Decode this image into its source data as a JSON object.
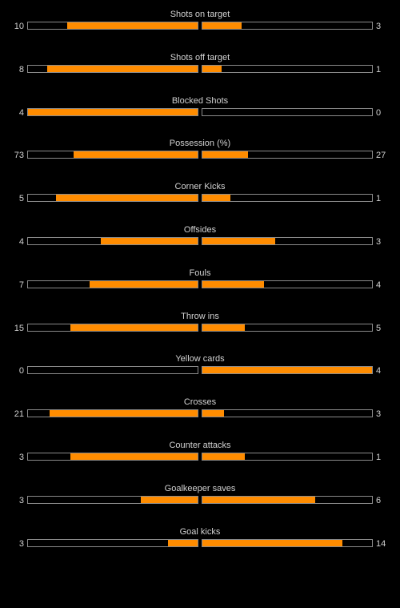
{
  "colors": {
    "background": "#000000",
    "bar_fill": "#ff8c00",
    "bar_border": "#8a8a8a",
    "text": "#d2d2d2"
  },
  "stats": [
    {
      "label": "Shots on target",
      "home": "10",
      "away": "3"
    },
    {
      "label": "Shots off target",
      "home": "8",
      "away": "1"
    },
    {
      "label": "Blocked Shots",
      "home": "4",
      "away": "0"
    },
    {
      "label": "Possession (%)",
      "home": "73",
      "away": "27"
    },
    {
      "label": "Corner Kicks",
      "home": "5",
      "away": "1"
    },
    {
      "label": "Offsides",
      "home": "4",
      "away": "3"
    },
    {
      "label": "Fouls",
      "home": "7",
      "away": "4"
    },
    {
      "label": "Throw ins",
      "home": "15",
      "away": "5"
    },
    {
      "label": "Yellow cards",
      "home": "0",
      "away": "4"
    },
    {
      "label": "Crosses",
      "home": "21",
      "away": "3"
    },
    {
      "label": "Counter attacks",
      "home": "3",
      "away": "1"
    },
    {
      "label": "Goalkeeper saves",
      "home": "3",
      "away": "6"
    },
    {
      "label": "Goal kicks",
      "home": "3",
      "away": "14"
    }
  ]
}
